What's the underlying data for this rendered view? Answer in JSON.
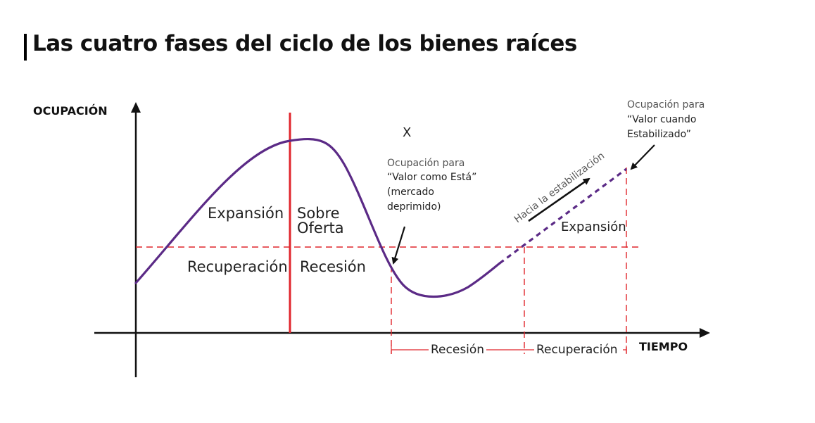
{
  "title": "Las cuatro fases del ciclo de los bienes raíces",
  "axes": {
    "y_label": "OCUPACIÓN",
    "x_label": "TIEMPO"
  },
  "phases": {
    "expansion_left": "Expansión",
    "sobre_oferta_line1": "Sobre",
    "sobre_oferta_line2": "Oferta",
    "recuperacion_left": "Recuperación",
    "recesion_mid": "Recesión",
    "expansion_right": "Expansión"
  },
  "marker_x": "X",
  "annotation_as_is": {
    "line1": "Ocupación para",
    "line2": "“Valor como Está”",
    "line3": "(mercado",
    "line4": "deprimido)"
  },
  "annotation_stabilized": {
    "line1": "Ocupación para",
    "line2": "“Valor cuando",
    "line3": "Estabilizado”"
  },
  "stabilization_arrow_label": "Hacia la estabilización",
  "timeline": {
    "recession": "Recesión",
    "recovery": "Recuperación"
  },
  "colors": {
    "curve": "#5b2a86",
    "red": "#e0262c",
    "axis": "#111111"
  }
}
